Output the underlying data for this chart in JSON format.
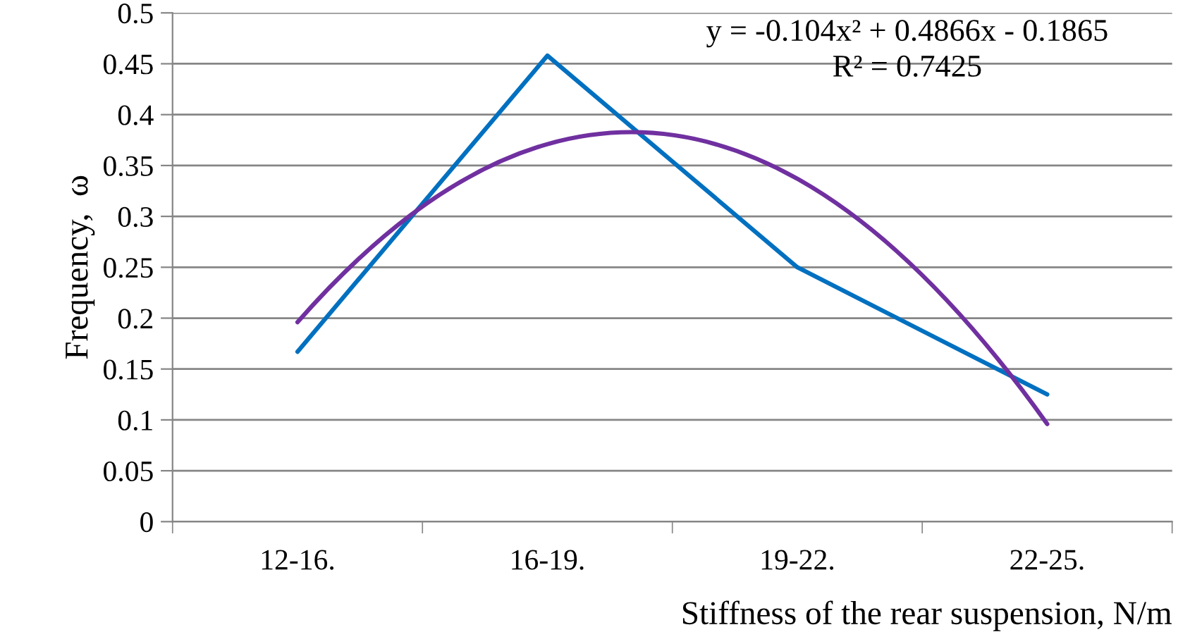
{
  "chart_data": {
    "type": "line",
    "xlabel": "Stiffness of the rear suspension, N/m",
    "ylabel": "Frequency,  ω",
    "categories": [
      "12-16.",
      "16-19.",
      "19-22.",
      "22-25."
    ],
    "series": [
      {
        "color": "#0070c0",
        "values": [
          0.167,
          0.458,
          0.25,
          0.125
        ]
      },
      {
        "type": "line",
        "color": "#7030a0",
        "values": [
          0.196,
          0.371,
          0.337,
          0.096
        ]
      }
    ],
    "ylim": [
      0,
      0.5
    ],
    "yticks": [
      0,
      0.05,
      0.1,
      0.15,
      0.2,
      0.25,
      0.3,
      0.35,
      0.4,
      0.45,
      0.5
    ],
    "grid": "y",
    "annotations": [
      "y = -0.104x² + 0.4866x - 0.1865",
      "R² = 0.7425"
    ]
  }
}
